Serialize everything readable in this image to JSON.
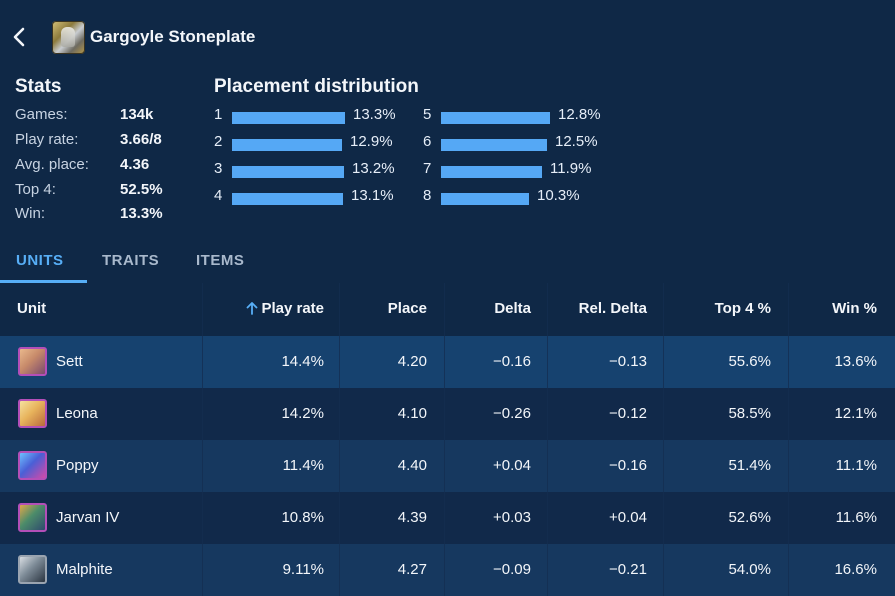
{
  "header": {
    "back_icon": "chevron-left-icon",
    "title": "Gargoyle Stoneplate",
    "item_icon": "gargoyle-stoneplate-item-icon"
  },
  "stats": {
    "title": "Stats",
    "rows": [
      {
        "label": "Games:",
        "value": "134k"
      },
      {
        "label": "Play rate:",
        "value": "3.66/8"
      },
      {
        "label": "Avg. place:",
        "value": "4.36"
      },
      {
        "label": "Top 4:",
        "value": "52.5%"
      },
      {
        "label": "Win:",
        "value": "13.3%"
      }
    ]
  },
  "placement": {
    "title": "Placement distribution",
    "rows": [
      {
        "rank": "1",
        "pct": "13.3%",
        "value": 13.3
      },
      {
        "rank": "2",
        "pct": "12.9%",
        "value": 12.9
      },
      {
        "rank": "3",
        "pct": "13.2%",
        "value": 13.2
      },
      {
        "rank": "4",
        "pct": "13.1%",
        "value": 13.1
      },
      {
        "rank": "5",
        "pct": "12.8%",
        "value": 12.8
      },
      {
        "rank": "6",
        "pct": "12.5%",
        "value": 12.5
      },
      {
        "rank": "7",
        "pct": "11.9%",
        "value": 11.9
      },
      {
        "rank": "8",
        "pct": "10.3%",
        "value": 10.3
      }
    ],
    "bar_color": "#55a8f5"
  },
  "tabs": [
    {
      "label": "UNITS",
      "active": true
    },
    {
      "label": "TRAITS",
      "active": false
    },
    {
      "label": "ITEMS",
      "active": false
    }
  ],
  "table": {
    "columns": [
      "Unit",
      "Play rate",
      "Place",
      "Delta",
      "Rel. Delta",
      "Top 4 %",
      "Win %"
    ],
    "sorted_column": "Play rate",
    "sort_direction": "ascending-arrow-icon",
    "rows": [
      {
        "unit": "Sett",
        "play_rate": "14.4%",
        "place": "4.20",
        "delta": "−0.16",
        "rel_delta": "−0.13",
        "top4": "55.6%",
        "win": "13.6%"
      },
      {
        "unit": "Leona",
        "play_rate": "14.2%",
        "place": "4.10",
        "delta": "−0.26",
        "rel_delta": "−0.12",
        "top4": "58.5%",
        "win": "12.1%"
      },
      {
        "unit": "Poppy",
        "play_rate": "11.4%",
        "place": "4.40",
        "delta": "+0.04",
        "rel_delta": "−0.16",
        "top4": "51.4%",
        "win": "11.1%"
      },
      {
        "unit": "Jarvan IV",
        "play_rate": "10.8%",
        "place": "4.39",
        "delta": "+0.03",
        "rel_delta": "+0.04",
        "top4": "52.6%",
        "win": "11.6%"
      },
      {
        "unit": "Malphite",
        "play_rate": "9.11%",
        "place": "4.27",
        "delta": "−0.09",
        "rel_delta": "−0.21",
        "top4": "54.0%",
        "win": "16.6%"
      }
    ]
  },
  "colors": {
    "accent": "#57aef6",
    "background": "#0f2846",
    "unit_border": "#b34fb8"
  }
}
